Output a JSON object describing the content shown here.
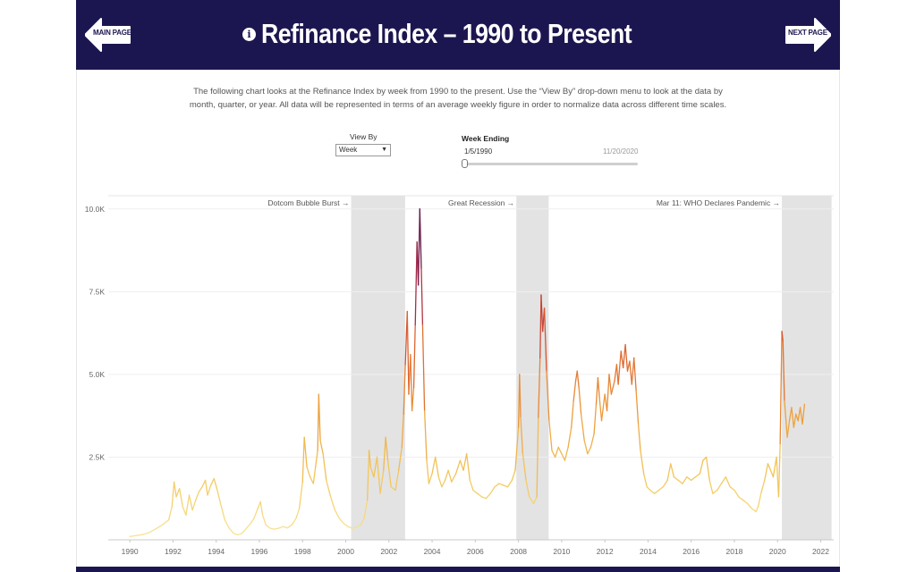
{
  "header": {
    "title": "Refinance Index – 1990 to Present",
    "prev_label": "MAIN PAGE",
    "next_label": "NEXT PAGE",
    "info_icon": "info-icon"
  },
  "description": {
    "line1": "The following chart looks at the Refinance Index by week from 1990 to the present. Use the “View By” drop-down menu to look at the data by",
    "line2": "month, quarter, or year.  All data will be represented in terms of an average weekly figure in order to normalize data across different time scales."
  },
  "controls": {
    "view_by_label": "View By",
    "view_by_value": "Week",
    "week_ending_label": "Week Ending",
    "slider_start": "1/5/1990",
    "slider_end": "11/20/2020"
  },
  "colors": {
    "header_bg": "#1c1650",
    "shade": "#e3e3e3",
    "ramp": [
      "#f7e79a",
      "#f2c65a",
      "#ec9a3a",
      "#d8562c",
      "#a0254d",
      "#3b1245"
    ]
  },
  "chart_data": {
    "type": "line",
    "xlim": [
      1989,
      2022.6
    ],
    "ylim": [
      0,
      10400
    ],
    "x_ticks": [
      1990,
      1992,
      1994,
      1996,
      1998,
      2000,
      2002,
      2004,
      2006,
      2008,
      2010,
      2012,
      2014,
      2016,
      2018,
      2020,
      2022
    ],
    "y_ticks": [
      {
        "value": 2500,
        "label": "2.5K"
      },
      {
        "value": 5000,
        "label": "5.0K"
      },
      {
        "value": 7500,
        "label": "7.5K"
      },
      {
        "value": 10000,
        "label": "10.0K"
      }
    ],
    "shaded_periods": [
      {
        "start": 2000.25,
        "end": 2002.75,
        "label": "Dotcom Bubble Burst →"
      },
      {
        "start": 2007.9,
        "end": 2009.4,
        "label": "Great Recession →"
      },
      {
        "start": 2020.2,
        "end": 2022.5,
        "label": "Mar 11: WHO Declares Pandemic →"
      }
    ],
    "series": [
      {
        "points": [
          [
            1990.0,
            100
          ],
          [
            1990.3,
            130
          ],
          [
            1990.6,
            160
          ],
          [
            1990.9,
            220
          ],
          [
            1991.2,
            330
          ],
          [
            1991.5,
            450
          ],
          [
            1991.8,
            600
          ],
          [
            1991.95,
            1000
          ],
          [
            1992.05,
            1750
          ],
          [
            1992.15,
            1300
          ],
          [
            1992.3,
            1550
          ],
          [
            1992.45,
            1000
          ],
          [
            1992.6,
            750
          ],
          [
            1992.75,
            1350
          ],
          [
            1992.9,
            900
          ],
          [
            1993.05,
            1200
          ],
          [
            1993.2,
            1450
          ],
          [
            1993.35,
            1600
          ],
          [
            1993.5,
            1800
          ],
          [
            1993.6,
            1350
          ],
          [
            1993.75,
            1650
          ],
          [
            1993.9,
            1850
          ],
          [
            1994.05,
            1500
          ],
          [
            1994.2,
            1100
          ],
          [
            1994.4,
            600
          ],
          [
            1994.6,
            350
          ],
          [
            1994.8,
            200
          ],
          [
            1995.0,
            150
          ],
          [
            1995.2,
            200
          ],
          [
            1995.4,
            350
          ],
          [
            1995.6,
            500
          ],
          [
            1995.75,
            650
          ],
          [
            1995.9,
            900
          ],
          [
            1996.05,
            1150
          ],
          [
            1996.15,
            750
          ],
          [
            1996.3,
            450
          ],
          [
            1996.5,
            350
          ],
          [
            1996.7,
            320
          ],
          [
            1996.9,
            350
          ],
          [
            1997.1,
            400
          ],
          [
            1997.3,
            360
          ],
          [
            1997.5,
            450
          ],
          [
            1997.7,
            650
          ],
          [
            1997.85,
            950
          ],
          [
            1998.0,
            1750
          ],
          [
            1998.08,
            3100
          ],
          [
            1998.2,
            2200
          ],
          [
            1998.35,
            1900
          ],
          [
            1998.5,
            1700
          ],
          [
            1998.6,
            2200
          ],
          [
            1998.7,
            2700
          ],
          [
            1998.75,
            4400
          ],
          [
            1998.82,
            3000
          ],
          [
            1998.95,
            2600
          ],
          [
            1999.1,
            1800
          ],
          [
            1999.3,
            1300
          ],
          [
            1999.5,
            900
          ],
          [
            1999.7,
            650
          ],
          [
            1999.9,
            500
          ],
          [
            2000.1,
            400
          ],
          [
            2000.3,
            350
          ],
          [
            2000.5,
            380
          ],
          [
            2000.7,
            450
          ],
          [
            2000.85,
            650
          ],
          [
            2001.0,
            1200
          ],
          [
            2001.08,
            2700
          ],
          [
            2001.15,
            2200
          ],
          [
            2001.3,
            1900
          ],
          [
            2001.45,
            2500
          ],
          [
            2001.6,
            1400
          ],
          [
            2001.75,
            2100
          ],
          [
            2001.85,
            3100
          ],
          [
            2001.95,
            2400
          ],
          [
            2002.1,
            1600
          ],
          [
            2002.3,
            1500
          ],
          [
            2002.45,
            2100
          ],
          [
            2002.6,
            2800
          ],
          [
            2002.68,
            3800
          ],
          [
            2002.76,
            5300
          ],
          [
            2002.85,
            6900
          ],
          [
            2002.92,
            4400
          ],
          [
            2003.0,
            5600
          ],
          [
            2003.07,
            3900
          ],
          [
            2003.15,
            4600
          ],
          [
            2003.22,
            6500
          ],
          [
            2003.3,
            9000
          ],
          [
            2003.36,
            7700
          ],
          [
            2003.43,
            10000
          ],
          [
            2003.5,
            8200
          ],
          [
            2003.56,
            6500
          ],
          [
            2003.65,
            3900
          ],
          [
            2003.75,
            2400
          ],
          [
            2003.85,
            1700
          ],
          [
            2004.0,
            2000
          ],
          [
            2004.15,
            2500
          ],
          [
            2004.3,
            1900
          ],
          [
            2004.45,
            1600
          ],
          [
            2004.6,
            1800
          ],
          [
            2004.75,
            2100
          ],
          [
            2004.9,
            1750
          ],
          [
            2005.1,
            2000
          ],
          [
            2005.3,
            2400
          ],
          [
            2005.45,
            2100
          ],
          [
            2005.6,
            2600
          ],
          [
            2005.75,
            1800
          ],
          [
            2005.9,
            1500
          ],
          [
            2006.1,
            1400
          ],
          [
            2006.3,
            1300
          ],
          [
            2006.5,
            1250
          ],
          [
            2006.7,
            1400
          ],
          [
            2006.9,
            1600
          ],
          [
            2007.1,
            1700
          ],
          [
            2007.3,
            1650
          ],
          [
            2007.5,
            1600
          ],
          [
            2007.7,
            1800
          ],
          [
            2007.85,
            2100
          ],
          [
            2008.0,
            3400
          ],
          [
            2008.05,
            5000
          ],
          [
            2008.1,
            3700
          ],
          [
            2008.2,
            2600
          ],
          [
            2008.35,
            1800
          ],
          [
            2008.5,
            1300
          ],
          [
            2008.7,
            1100
          ],
          [
            2008.85,
            1300
          ],
          [
            2008.92,
            3700
          ],
          [
            2009.0,
            5500
          ],
          [
            2009.05,
            7400
          ],
          [
            2009.12,
            6300
          ],
          [
            2009.2,
            7000
          ],
          [
            2009.3,
            5100
          ],
          [
            2009.42,
            3600
          ],
          [
            2009.55,
            2700
          ],
          [
            2009.7,
            2500
          ],
          [
            2009.85,
            2800
          ],
          [
            2010.0,
            2600
          ],
          [
            2010.15,
            2400
          ],
          [
            2010.3,
            2800
          ],
          [
            2010.45,
            3400
          ],
          [
            2010.55,
            4200
          ],
          [
            2010.65,
            4800
          ],
          [
            2010.72,
            5100
          ],
          [
            2010.8,
            4600
          ],
          [
            2010.9,
            3800
          ],
          [
            2011.05,
            3000
          ],
          [
            2011.2,
            2600
          ],
          [
            2011.35,
            2800
          ],
          [
            2011.5,
            3200
          ],
          [
            2011.6,
            4100
          ],
          [
            2011.68,
            4900
          ],
          [
            2011.75,
            4300
          ],
          [
            2011.85,
            3600
          ],
          [
            2012.0,
            4400
          ],
          [
            2012.1,
            3900
          ],
          [
            2012.2,
            5000
          ],
          [
            2012.3,
            4400
          ],
          [
            2012.45,
            4800
          ],
          [
            2012.55,
            5300
          ],
          [
            2012.62,
            4700
          ],
          [
            2012.75,
            5700
          ],
          [
            2012.85,
            5200
          ],
          [
            2012.95,
            5900
          ],
          [
            2013.05,
            5100
          ],
          [
            2013.15,
            5400
          ],
          [
            2013.25,
            4700
          ],
          [
            2013.35,
            5500
          ],
          [
            2013.45,
            4500
          ],
          [
            2013.55,
            3500
          ],
          [
            2013.65,
            2700
          ],
          [
            2013.8,
            2000
          ],
          [
            2013.95,
            1600
          ],
          [
            2014.1,
            1500
          ],
          [
            2014.3,
            1400
          ],
          [
            2014.5,
            1500
          ],
          [
            2014.7,
            1600
          ],
          [
            2014.9,
            1800
          ],
          [
            2015.05,
            2300
          ],
          [
            2015.2,
            1900
          ],
          [
            2015.4,
            1800
          ],
          [
            2015.6,
            1700
          ],
          [
            2015.8,
            1900
          ],
          [
            2016.0,
            1800
          ],
          [
            2016.2,
            1900
          ],
          [
            2016.4,
            2000
          ],
          [
            2016.55,
            2400
          ],
          [
            2016.7,
            2500
          ],
          [
            2016.85,
            1800
          ],
          [
            2017.0,
            1400
          ],
          [
            2017.2,
            1500
          ],
          [
            2017.4,
            1700
          ],
          [
            2017.6,
            1900
          ],
          [
            2017.8,
            1600
          ],
          [
            2018.0,
            1500
          ],
          [
            2018.2,
            1300
          ],
          [
            2018.4,
            1200
          ],
          [
            2018.6,
            1100
          ],
          [
            2018.8,
            950
          ],
          [
            2019.0,
            850
          ],
          [
            2019.1,
            1000
          ],
          [
            2019.25,
            1450
          ],
          [
            2019.4,
            1800
          ],
          [
            2019.55,
            2300
          ],
          [
            2019.68,
            2100
          ],
          [
            2019.8,
            1900
          ],
          [
            2019.95,
            2500
          ],
          [
            2020.05,
            1300
          ],
          [
            2020.12,
            2900
          ],
          [
            2020.2,
            6300
          ],
          [
            2020.25,
            6000
          ],
          [
            2020.32,
            4200
          ],
          [
            2020.45,
            3100
          ],
          [
            2020.55,
            3600
          ],
          [
            2020.65,
            4000
          ],
          [
            2020.75,
            3400
          ],
          [
            2020.85,
            3800
          ],
          [
            2020.95,
            3600
          ],
          [
            2021.05,
            4000
          ],
          [
            2021.15,
            3500
          ],
          [
            2021.25,
            4100
          ]
        ]
      }
    ]
  }
}
